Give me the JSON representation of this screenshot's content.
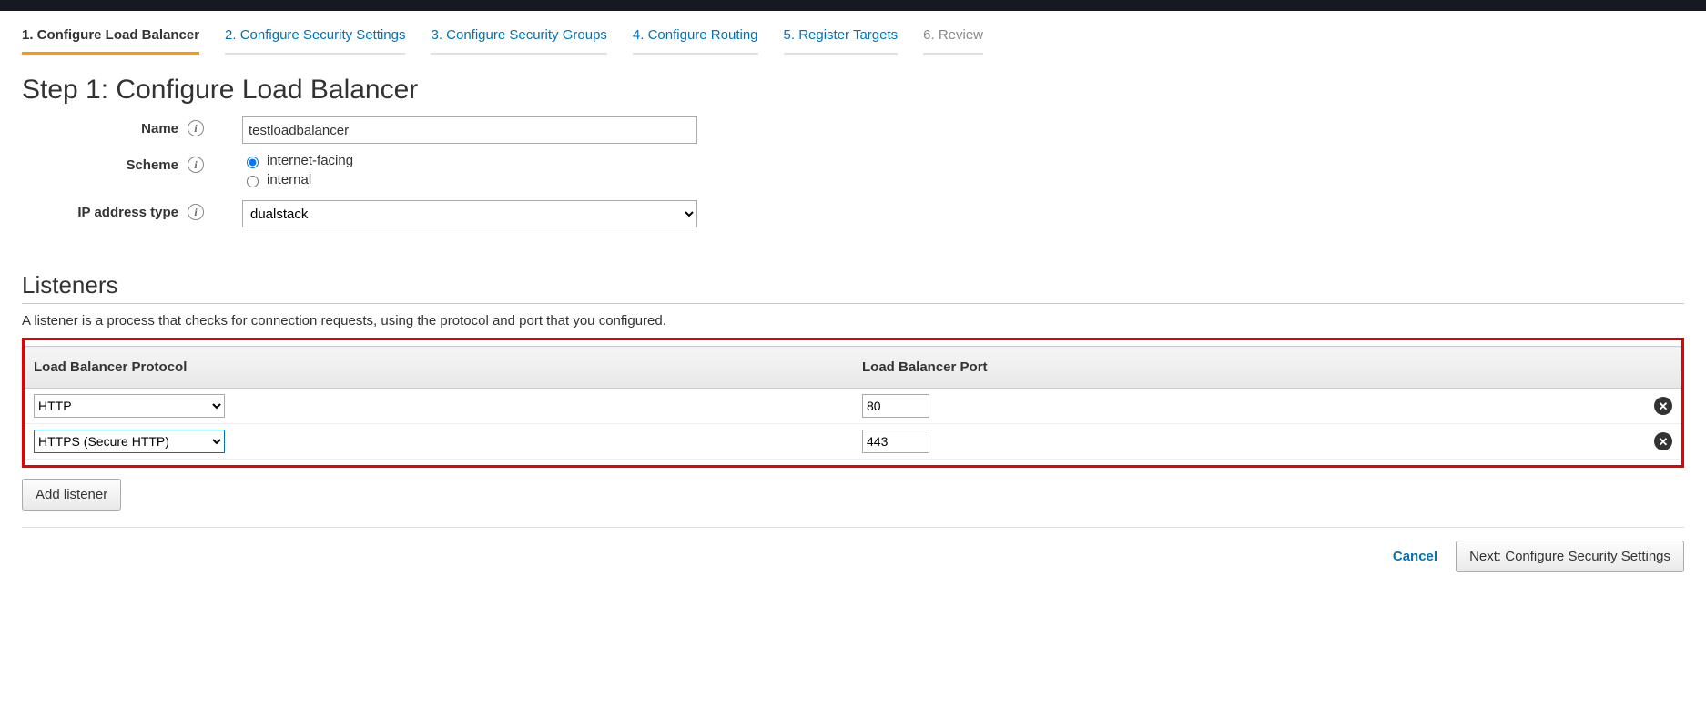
{
  "wizard": {
    "steps": [
      {
        "label": "1. Configure Load Balancer",
        "state": "active"
      },
      {
        "label": "2. Configure Security Settings",
        "state": "link"
      },
      {
        "label": "3. Configure Security Groups",
        "state": "link"
      },
      {
        "label": "4. Configure Routing",
        "state": "link"
      },
      {
        "label": "5. Register Targets",
        "state": "link"
      },
      {
        "label": "6. Review",
        "state": "disabled"
      }
    ]
  },
  "step_title": "Step 1: Configure Load Balancer",
  "form": {
    "name_label": "Name",
    "name_value": "testloadbalancer",
    "scheme_label": "Scheme",
    "scheme_options": {
      "internet_facing": "internet-facing",
      "internal": "internal"
    },
    "scheme_selected": "internet-facing",
    "ip_type_label": "IP address type",
    "ip_type_value": "dualstack"
  },
  "listeners": {
    "title": "Listeners",
    "description": "A listener is a process that checks for connection requests, using the protocol and port that you configured.",
    "columns": {
      "protocol": "Load Balancer Protocol",
      "port": "Load Balancer Port"
    },
    "rows": [
      {
        "protocol": "HTTP",
        "port": "80"
      },
      {
        "protocol": "HTTPS (Secure HTTP)",
        "port": "443"
      }
    ],
    "add_button": "Add listener"
  },
  "footer": {
    "cancel": "Cancel",
    "next": "Next: Configure Security Settings"
  }
}
